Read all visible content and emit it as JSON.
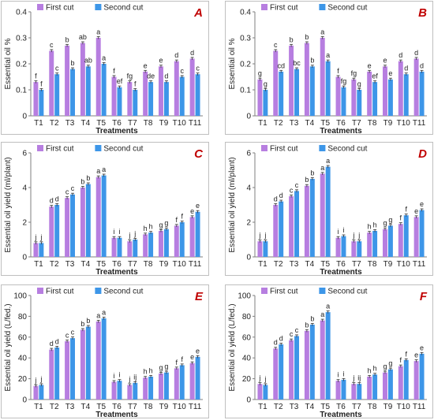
{
  "colors": {
    "first": "#b77ee0",
    "second": "#3d96e8"
  },
  "chart_data": [
    {
      "type": "bar",
      "letter": "A",
      "categories": [
        "T1",
        "T2",
        "T3",
        "T4",
        "T5",
        "T6",
        "T7",
        "T8",
        "T9",
        "T10",
        "T11"
      ],
      "xlabel": "Treatments",
      "ylabel": "Essential oil %",
      "ylim": [
        0,
        0.4
      ],
      "yticks": [
        "0",
        "0.1",
        "0.2",
        "0.3",
        "0.4"
      ],
      "ytick_values": [
        0,
        0.1,
        0.2,
        0.3,
        0.4
      ],
      "legend": "top-left",
      "series": [
        {
          "name": "First cut",
          "values": [
            0.13,
            0.25,
            0.27,
            0.28,
            0.3,
            0.15,
            0.13,
            0.17,
            0.19,
            0.21,
            0.22
          ],
          "labels": [
            "f",
            "c",
            "b",
            "ab",
            "a",
            "f",
            "fg",
            "e",
            "e",
            "d",
            "d"
          ]
        },
        {
          "name": "Second cut",
          "values": [
            0.1,
            0.16,
            0.18,
            0.19,
            0.2,
            0.11,
            0.1,
            0.13,
            0.13,
            0.15,
            0.16
          ],
          "labels": [
            "f",
            "c",
            "b",
            "ab",
            "a",
            "ef",
            "f",
            "de",
            "d",
            "c",
            "c"
          ]
        }
      ]
    },
    {
      "type": "bar",
      "letter": "B",
      "categories": [
        "T1",
        "T2",
        "T3",
        "T4",
        "T5",
        "T6",
        "T7",
        "T8",
        "T9",
        "T10",
        "T11"
      ],
      "xlabel": "Treatments",
      "ylabel": "Essential oil %",
      "ylim": [
        0,
        0.4
      ],
      "yticks": [
        "0",
        "0.1",
        "0.2",
        "0.3",
        "0.4"
      ],
      "ytick_values": [
        0,
        0.1,
        0.2,
        0.3,
        0.4
      ],
      "legend": "top-left",
      "series": [
        {
          "name": "First cut",
          "values": [
            0.14,
            0.25,
            0.27,
            0.28,
            0.3,
            0.15,
            0.14,
            0.17,
            0.19,
            0.21,
            0.22
          ],
          "labels": [
            "g",
            "c",
            "b",
            "b",
            "a",
            "f",
            "fg",
            "e",
            "e",
            "d",
            "d"
          ]
        },
        {
          "name": "Second cut",
          "values": [
            0.1,
            0.17,
            0.18,
            0.19,
            0.21,
            0.11,
            0.1,
            0.13,
            0.14,
            0.16,
            0.17
          ],
          "labels": [
            "g",
            "cd",
            "bc",
            "b",
            "a",
            "fg",
            "g",
            "ef",
            "e",
            "d",
            "d"
          ]
        }
      ]
    },
    {
      "type": "bar",
      "letter": "C",
      "categories": [
        "T1",
        "T2",
        "T3",
        "T4",
        "T5",
        "T6",
        "T7",
        "T8",
        "T9",
        "T10",
        "T11"
      ],
      "xlabel": "Treatments",
      "ylabel": "Essential oil yield (ml/plant)",
      "ylim": [
        0,
        6
      ],
      "yticks": [
        "0",
        "2",
        "4",
        "6"
      ],
      "ytick_values": [
        0,
        2,
        4,
        6
      ],
      "legend": "top-left",
      "series": [
        {
          "name": "First cut",
          "values": [
            0.8,
            2.9,
            3.4,
            4.0,
            4.6,
            1.1,
            0.9,
            1.3,
            1.5,
            1.8,
            2.3
          ],
          "labels": [
            "j",
            "d",
            "c",
            "b",
            "a",
            "i",
            "j",
            "h",
            "g",
            "f",
            "e"
          ]
        },
        {
          "name": "Second cut",
          "values": [
            0.8,
            3.0,
            3.6,
            4.2,
            4.7,
            1.1,
            1.0,
            1.4,
            1.6,
            2.0,
            2.6
          ],
          "labels": [
            "j",
            "d",
            "c",
            "b",
            "a",
            "i",
            "j",
            "h",
            "g",
            "f",
            "e"
          ]
        }
      ]
    },
    {
      "type": "bar",
      "letter": "D",
      "categories": [
        "T1",
        "T2",
        "T3",
        "T4",
        "T5",
        "T6",
        "T7",
        "T8",
        "T9",
        "T10",
        "T11"
      ],
      "xlabel": "Treatments",
      "ylabel": "Essential oil yield (ml/plant)",
      "ylim": [
        0,
        6
      ],
      "yticks": [
        "0",
        "2",
        "4",
        "6"
      ],
      "ytick_values": [
        0,
        2,
        4,
        6
      ],
      "legend": "top-left",
      "series": [
        {
          "name": "First cut",
          "values": [
            0.9,
            3.0,
            3.5,
            4.1,
            4.8,
            1.1,
            0.9,
            1.4,
            1.6,
            1.9,
            2.3
          ],
          "labels": [
            "j",
            "d",
            "c",
            "b",
            "a",
            "i",
            "j",
            "h",
            "g",
            "f",
            "e"
          ]
        },
        {
          "name": "Second cut",
          "values": [
            0.9,
            3.2,
            3.8,
            4.5,
            5.2,
            1.2,
            0.9,
            1.5,
            1.8,
            2.4,
            2.7
          ],
          "labels": [
            "j",
            "d",
            "c",
            "b",
            "a",
            "i",
            "j",
            "h",
            "g",
            "f",
            "e"
          ]
        }
      ]
    },
    {
      "type": "bar",
      "letter": "E",
      "categories": [
        "T1",
        "T2",
        "T3",
        "T4",
        "T5",
        "T6",
        "T7",
        "T8",
        "T9",
        "T10",
        "T11"
      ],
      "xlabel": "Treatments",
      "ylabel": "Essential oil yield (L/fed.)",
      "ylim": [
        0,
        100
      ],
      "yticks": [
        "0",
        "20",
        "40",
        "60",
        "80",
        "100"
      ],
      "ytick_values": [
        0,
        20,
        40,
        60,
        80,
        100
      ],
      "legend": "top-left",
      "series": [
        {
          "name": "First cut",
          "values": [
            13,
            48,
            56,
            67,
            75,
            17,
            14,
            21,
            25,
            30,
            35
          ],
          "labels": [
            "j",
            "d",
            "c",
            "b",
            "a",
            "i",
            "j",
            "h",
            "g",
            "f",
            "e"
          ]
        },
        {
          "name": "Second cut",
          "values": [
            14,
            50,
            59,
            70,
            78,
            18,
            16,
            22,
            26,
            33,
            41
          ],
          "labels": [
            "j",
            "d",
            "c",
            "b",
            "a",
            "i",
            "ij",
            "h",
            "g",
            "f",
            "e"
          ]
        }
      ]
    },
    {
      "type": "bar",
      "letter": "F",
      "categories": [
        "T1",
        "T2",
        "T3",
        "T4",
        "T5",
        "T6",
        "T7",
        "T8",
        "T9",
        "T10",
        "T11"
      ],
      "xlabel": "Treatments",
      "ylabel": "Essential oil yield (L/fed.)",
      "ylim": [
        0,
        100
      ],
      "yticks": [
        "0",
        "20",
        "40",
        "60",
        "80",
        "100"
      ],
      "ytick_values": [
        0,
        20,
        40,
        60,
        80,
        100
      ],
      "legend": "top-left",
      "series": [
        {
          "name": "First cut",
          "values": [
            15,
            49,
            57,
            66,
            76,
            18,
            15,
            22,
            26,
            32,
            37
          ],
          "labels": [
            "j",
            "d",
            "c",
            "b",
            "a",
            "i",
            "j",
            "h",
            "g",
            "f",
            "e"
          ]
        },
        {
          "name": "Second cut",
          "values": [
            14,
            53,
            61,
            72,
            84,
            19,
            15,
            24,
            29,
            38,
            44
          ],
          "labels": [
            "j",
            "d",
            "c",
            "b",
            "a",
            "i",
            "ij",
            "h",
            "g",
            "f",
            "e"
          ]
        }
      ]
    }
  ]
}
